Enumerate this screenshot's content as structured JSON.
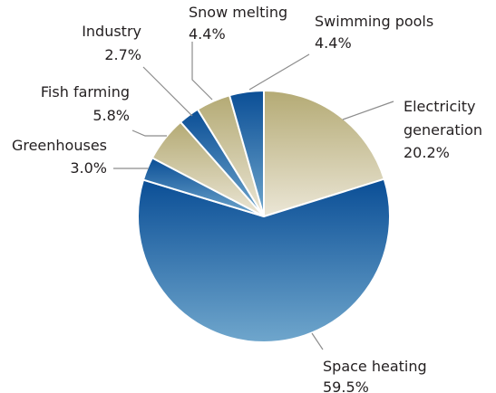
{
  "chart_data": {
    "type": "pie",
    "title": "",
    "categories": [
      "Electricity generation",
      "Space heating",
      "Greenhouses",
      "Fish farming",
      "Industry",
      "Snow melting",
      "Swimming pools"
    ],
    "values": [
      20.2,
      59.5,
      3.0,
      5.8,
      2.7,
      4.4,
      4.4
    ],
    "value_labels": [
      "20.2%",
      "59.5%",
      "3.0%",
      "5.8%",
      "2.7%",
      "4.4%",
      "4.4%"
    ],
    "start_angle_deg": 0,
    "direction": "clockwise",
    "legend": "none",
    "colors": {
      "blue_dark": "#0a4e96",
      "blue_light": "#6fa6cc",
      "tan_dark": "#b4aa74",
      "tan_light": "#ebe6d6",
      "separator": "#ffffff",
      "leader_line": "#8c8c8c",
      "text": "#231f20"
    },
    "slice_fill_classes": [
      "tan",
      "blue",
      "blue",
      "tan",
      "blue",
      "tan",
      "blue"
    ]
  }
}
